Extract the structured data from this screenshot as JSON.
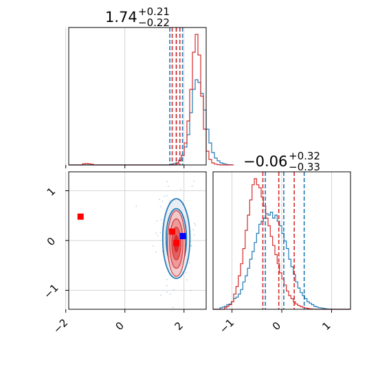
{
  "chart_data": {
    "type": "corner",
    "colors": {
      "series_a": "#1f77b4",
      "series_b": "#d62728",
      "marker_square": "#ff0000",
      "marker_true": "#0000ff",
      "grid": "#c8c8c8"
    },
    "grid": true,
    "parameters": [
      {
        "title_value": "1.74",
        "title_plus": "+0.21",
        "title_minus": "−0.22",
        "range": [
          -1.9,
          2.75
        ],
        "ticks": [
          {
            "value": -2,
            "label": "−2"
          },
          {
            "value": 0,
            "label": "0"
          },
          {
            "value": 2,
            "label": "2"
          }
        ]
      },
      {
        "title_value": "−0.06",
        "title_plus": "+0.32",
        "title_minus": "−0.33",
        "range": [
          -1.38,
          1.38
        ],
        "ticks": [
          {
            "value": -1,
            "label": "−1"
          },
          {
            "value": 0,
            "label": "0"
          },
          {
            "value": 1,
            "label": "1"
          }
        ]
      }
    ],
    "hist_1": {
      "bin_start": -1.9,
      "bin_width": 0.093,
      "series_a": [
        0,
        0,
        0,
        0,
        0,
        0,
        0,
        0,
        0,
        0,
        0,
        0,
        0,
        0,
        0,
        0,
        0,
        0,
        0,
        0,
        0,
        0,
        0,
        0,
        0,
        0,
        0,
        0,
        0,
        0,
        0,
        0,
        0,
        0,
        0,
        0,
        0,
        0.005,
        0.01,
        0.015,
        0.035,
        0.07,
        0.13,
        0.22,
        0.38,
        0.55,
        0.62,
        0.6,
        0.52,
        0.4,
        0.26,
        0.16,
        0.09,
        0.05,
        0.03,
        0.015,
        0.008,
        0.004,
        0.002,
        0.001
      ],
      "series_b": [
        0,
        0,
        0,
        0,
        0,
        0.008,
        0.01,
        0.008,
        0.005,
        0,
        0,
        0,
        0,
        0,
        0,
        0,
        0,
        0,
        0,
        0,
        0,
        0,
        0,
        0,
        0,
        0,
        0,
        0,
        0,
        0,
        0,
        0,
        0,
        0,
        0,
        0,
        0,
        0,
        0,
        0.01,
        0.03,
        0.07,
        0.16,
        0.32,
        0.55,
        0.82,
        0.95,
        0.8,
        0.5,
        0.26,
        0.1,
        0.04,
        0.015,
        0.006,
        0.002,
        0,
        0,
        0,
        0,
        0
      ],
      "series_a_quantiles": [
        1.52,
        1.74,
        1.95
      ],
      "series_b_quantiles": [
        1.6,
        1.74,
        1.86
      ]
    },
    "hist_2": {
      "bin_start": -1.38,
      "bin_width": 0.046,
      "series_a": [
        0,
        0,
        0,
        0.01,
        0.015,
        0.02,
        0.03,
        0.035,
        0.05,
        0.07,
        0.08,
        0.1,
        0.13,
        0.18,
        0.22,
        0.27,
        0.33,
        0.38,
        0.44,
        0.5,
        0.56,
        0.58,
        0.6,
        0.63,
        0.62,
        0.64,
        0.6,
        0.62,
        0.58,
        0.55,
        0.5,
        0.45,
        0.4,
        0.33,
        0.28,
        0.23,
        0.18,
        0.14,
        0.11,
        0.09,
        0.07,
        0.05,
        0.04,
        0.03,
        0.02,
        0.015,
        0.01,
        0.008,
        0.005,
        0.003,
        0.002,
        0.001,
        0.001,
        0,
        0,
        0,
        0,
        0,
        0,
        0
      ],
      "series_b": [
        0,
        0,
        0,
        0,
        0,
        0.01,
        0.02,
        0.03,
        0.05,
        0.1,
        0.15,
        0.22,
        0.3,
        0.4,
        0.52,
        0.62,
        0.72,
        0.82,
        0.86,
        0.82,
        0.8,
        0.74,
        0.68,
        0.6,
        0.55,
        0.48,
        0.42,
        0.36,
        0.3,
        0.24,
        0.2,
        0.16,
        0.12,
        0.09,
        0.07,
        0.05,
        0.035,
        0.025,
        0.018,
        0.012,
        0.008,
        0.005,
        0.003,
        0.002,
        0.001,
        0,
        0,
        0,
        0,
        0,
        0,
        0,
        0,
        0,
        0,
        0,
        0,
        0,
        0,
        0
      ],
      "series_a_quantiles": [
        -0.33,
        0.04,
        0.45
      ],
      "series_b_quantiles": [
        -0.38,
        -0.06,
        0.25
      ]
    },
    "contour_2d": {
      "series_a_center": [
        1.74,
        0.04
      ],
      "series_a_sigma": [
        0.23,
        0.4
      ],
      "series_b_center": [
        1.74,
        -0.06
      ],
      "series_b_sigma": [
        0.15,
        0.33
      ],
      "levels": [
        0.5,
        1.0,
        1.5,
        2.0
      ]
    },
    "markers": [
      {
        "x": -1.5,
        "y": 0.48,
        "color_key": "marker_square"
      },
      {
        "x": 1.6,
        "y": 0.18,
        "color_key": "marker_square"
      },
      {
        "x": 1.74,
        "y": -0.05,
        "color_key": "marker_square"
      },
      {
        "x": 1.96,
        "y": 0.09,
        "color_key": "marker_true"
      }
    ]
  }
}
